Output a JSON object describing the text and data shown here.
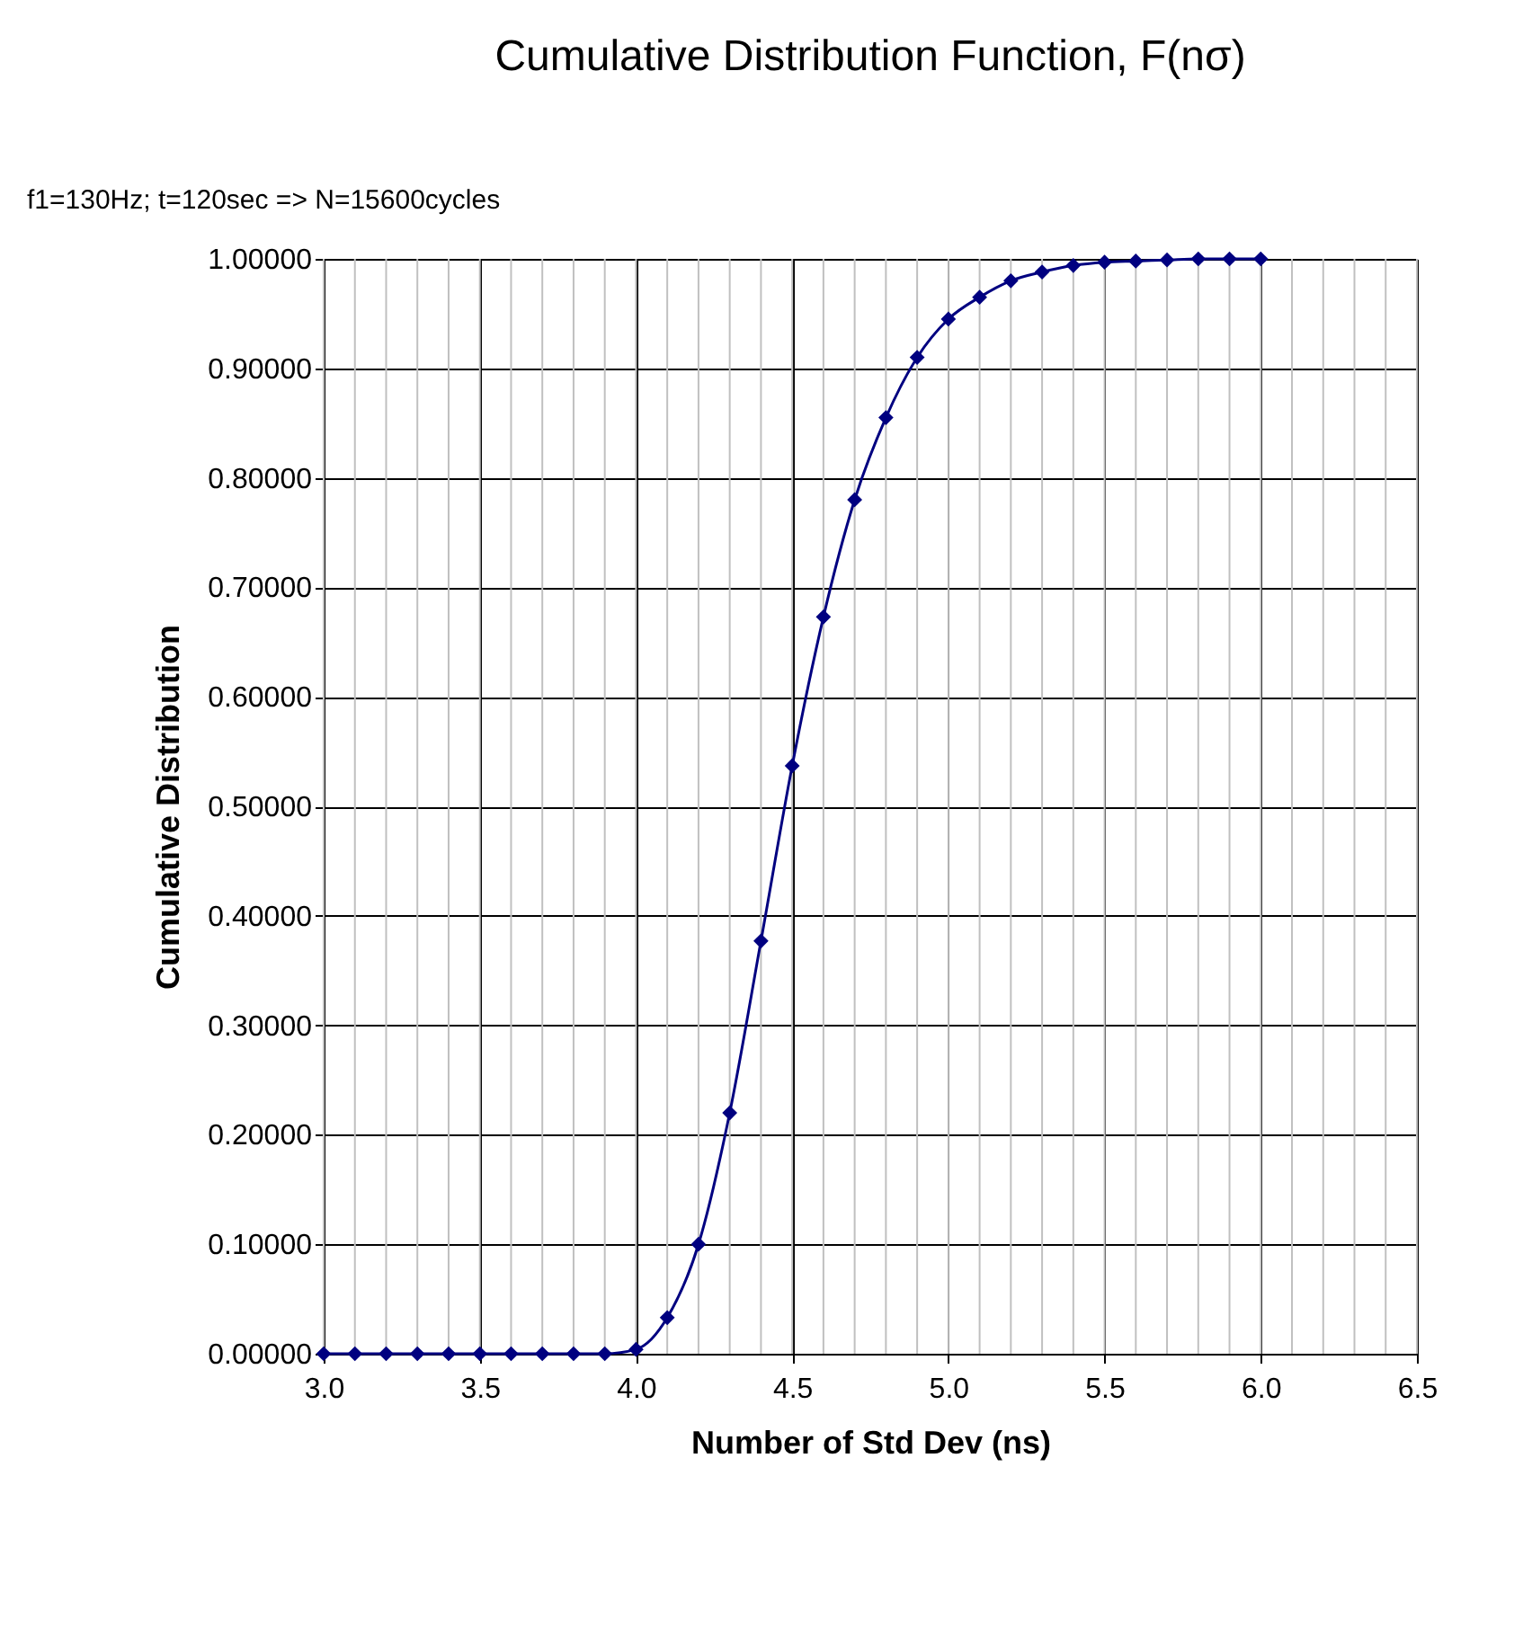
{
  "chart_data": {
    "type": "line",
    "title": "Cumulative Distribution Function, F(nσ)",
    "subtitle": "f1=130Hz; t=120sec => N=15600cycles",
    "xlabel": "Number of Std Dev (ns)",
    "ylabel": "Cumulative Distribution",
    "x": [
      3.0,
      3.1,
      3.2,
      3.3,
      3.4,
      3.5,
      3.6,
      3.7,
      3.8,
      3.9,
      4.0,
      4.1,
      4.2,
      4.3,
      4.4,
      4.5,
      4.6,
      4.7,
      4.8,
      4.9,
      5.0,
      5.1,
      5.2,
      5.3,
      5.4,
      5.5,
      5.6,
      5.7,
      5.8,
      5.9,
      6.0
    ],
    "series": [
      {
        "color": "#000080",
        "values": [
          0,
          0,
          0,
          0,
          0,
          0,
          0,
          0,
          0,
          0,
          0.004,
          0.033,
          0.1,
          0.22,
          0.377,
          0.537,
          0.673,
          0.78,
          0.855,
          0.91,
          0.945,
          0.965,
          0.98,
          0.988,
          0.994,
          0.997,
          0.998,
          0.999,
          1.0,
          1.0,
          1.0
        ]
      }
    ],
    "xlim": [
      3.0,
      6.5
    ],
    "xticks": [
      {
        "value": 3,
        "label": "3.0"
      },
      3.5,
      {
        "value": 4,
        "label": "4.0"
      },
      4.5,
      {
        "value": 5,
        "label": "5.0"
      },
      5.5,
      {
        "value": 6,
        "label": "6.0"
      },
      6.5
    ],
    "ylim": [
      0,
      1
    ],
    "yticks": [
      {
        "value": 0,
        "label": "0.00000"
      },
      {
        "value": 0.1,
        "label": "0.10000"
      },
      {
        "value": 0.2,
        "label": "0.20000"
      },
      {
        "value": 0.3,
        "label": "0.30000"
      },
      {
        "value": 0.4,
        "label": "0.40000"
      },
      {
        "value": 0.5,
        "label": "0.50000"
      },
      {
        "value": 0.6,
        "label": "0.60000"
      },
      {
        "value": 0.7,
        "label": "0.70000"
      },
      {
        "value": 0.8,
        "label": "0.80000"
      },
      {
        "value": 0.9,
        "label": "0.90000"
      },
      {
        "value": 1.0,
        "label": "1.00000"
      }
    ],
    "grid": true,
    "marker": "diamond",
    "line_style": "solid"
  }
}
